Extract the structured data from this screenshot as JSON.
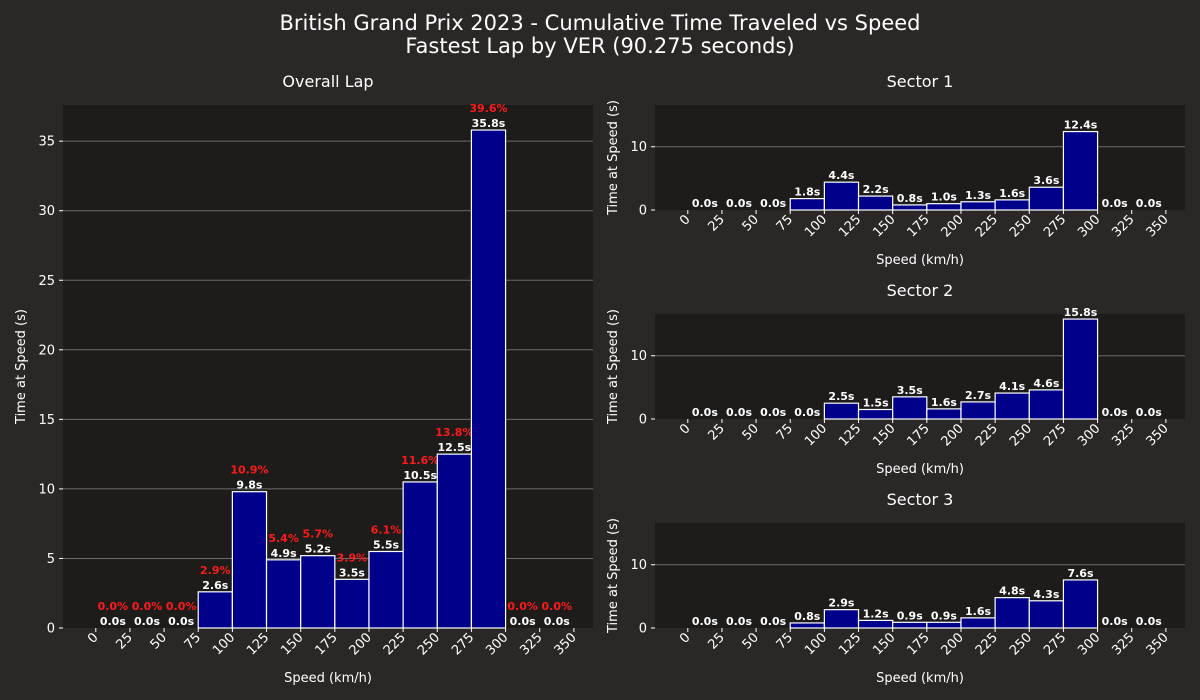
{
  "figure": {
    "title_line1": "British Grand Prix 2023 - Cumulative Time Traveled vs Speed",
    "title_line2": "Fastest Lap by VER (90.275 seconds)"
  },
  "colors": {
    "background": "#2a2726",
    "plot_background": "#1e1c1b",
    "bar_fill": "#00008b",
    "bar_edge": "#ffffff",
    "percent_label": "#ff1a1a",
    "text": "#ffffff",
    "grid": "#6b6b6b"
  },
  "chart_data": [
    {
      "type": "bar",
      "title": "Overall Lap",
      "xlabel": "Speed (km/h)",
      "ylabel": "Time at Speed (s)",
      "bin_edges": [
        0,
        25,
        50,
        75,
        100,
        125,
        150,
        175,
        200,
        225,
        250,
        275,
        300,
        325,
        350
      ],
      "x_ticks": [
        0,
        25,
        50,
        75,
        100,
        125,
        150,
        175,
        200,
        225,
        250,
        275,
        300,
        325,
        350
      ],
      "y_ticks": [
        0,
        5,
        10,
        15,
        20,
        25,
        30,
        35
      ],
      "ylim": [
        0,
        37.6
      ],
      "grid": "horizontal",
      "values": [
        0.0,
        0.0,
        0.0,
        2.6,
        9.8,
        4.9,
        5.2,
        3.5,
        5.5,
        10.5,
        12.5,
        35.8,
        0.0,
        0.0
      ],
      "value_labels": [
        "0.0s",
        "0.0s",
        "0.0s",
        "2.6s",
        "9.8s",
        "4.9s",
        "5.2s",
        "3.5s",
        "5.5s",
        "10.5s",
        "12.5s",
        "35.8s",
        "0.0s",
        "0.0s"
      ],
      "percent_labels": [
        "0.0%",
        "0.0%",
        "0.0%",
        "2.9%",
        "10.9%",
        "5.4%",
        "5.7%",
        "3.9%",
        "6.1%",
        "11.6%",
        "13.8%",
        "39.6%",
        "0.0%",
        "0.0%"
      ]
    },
    {
      "type": "bar",
      "title": "Sector 1",
      "xlabel": "Speed (km/h)",
      "ylabel": "Time at Speed (s)",
      "bin_edges": [
        0,
        25,
        50,
        75,
        100,
        125,
        150,
        175,
        200,
        225,
        250,
        275,
        300,
        325,
        350
      ],
      "x_ticks": [
        0,
        25,
        50,
        75,
        100,
        125,
        150,
        175,
        200,
        225,
        250,
        275,
        300,
        325,
        350
      ],
      "y_ticks": [
        0,
        10
      ],
      "ylim": [
        0,
        16.6
      ],
      "grid": "horizontal",
      "values": [
        0.0,
        0.0,
        0.0,
        1.8,
        4.4,
        2.2,
        0.8,
        1.0,
        1.3,
        1.6,
        3.6,
        12.4,
        0.0,
        0.0
      ],
      "value_labels": [
        "0.0s",
        "0.0s",
        "0.0s",
        "1.8s",
        "4.4s",
        "2.2s",
        "0.8s",
        "1.0s",
        "1.3s",
        "1.6s",
        "3.6s",
        "12.4s",
        "0.0s",
        "0.0s"
      ]
    },
    {
      "type": "bar",
      "title": "Sector 2",
      "xlabel": "Speed (km/h)",
      "ylabel": "Time at Speed (s)",
      "bin_edges": [
        0,
        25,
        50,
        75,
        100,
        125,
        150,
        175,
        200,
        225,
        250,
        275,
        300,
        325,
        350
      ],
      "x_ticks": [
        0,
        25,
        50,
        75,
        100,
        125,
        150,
        175,
        200,
        225,
        250,
        275,
        300,
        325,
        350
      ],
      "y_ticks": [
        0,
        10
      ],
      "ylim": [
        0,
        16.6
      ],
      "grid": "horizontal",
      "values": [
        0.0,
        0.0,
        0.0,
        0.0,
        2.5,
        1.5,
        3.5,
        1.6,
        2.7,
        4.1,
        4.6,
        15.8,
        0.0,
        0.0
      ],
      "value_labels": [
        "0.0s",
        "0.0s",
        "0.0s",
        "0.0s",
        "2.5s",
        "1.5s",
        "3.5s",
        "1.6s",
        "2.7s",
        "4.1s",
        "4.6s",
        "15.8s",
        "0.0s",
        "0.0s"
      ]
    },
    {
      "type": "bar",
      "title": "Sector 3",
      "xlabel": "Speed (km/h)",
      "ylabel": "Time at Speed (s)",
      "bin_edges": [
        0,
        25,
        50,
        75,
        100,
        125,
        150,
        175,
        200,
        225,
        250,
        275,
        300,
        325,
        350
      ],
      "x_ticks": [
        0,
        25,
        50,
        75,
        100,
        125,
        150,
        175,
        200,
        225,
        250,
        275,
        300,
        325,
        350
      ],
      "y_ticks": [
        0,
        10
      ],
      "ylim": [
        0,
        16.6
      ],
      "grid": "horizontal",
      "values": [
        0.0,
        0.0,
        0.0,
        0.8,
        2.9,
        1.2,
        0.9,
        0.9,
        1.6,
        4.8,
        4.3,
        7.6,
        0.0,
        0.0
      ],
      "value_labels": [
        "0.0s",
        "0.0s",
        "0.0s",
        "0.8s",
        "2.9s",
        "1.2s",
        "0.9s",
        "0.9s",
        "1.6s",
        "4.8s",
        "4.3s",
        "7.6s",
        "0.0s",
        "0.0s"
      ]
    }
  ]
}
